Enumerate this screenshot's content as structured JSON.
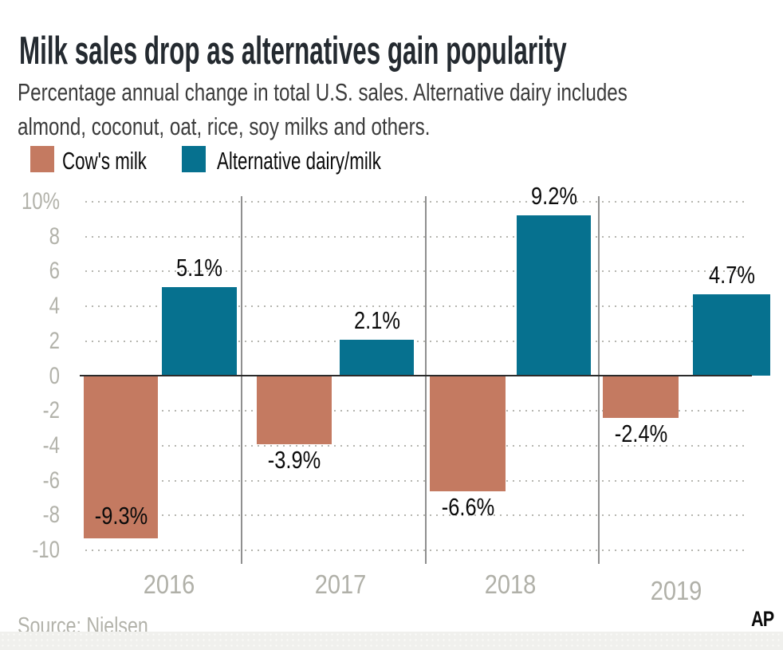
{
  "title": "Milk sales drop as alternatives gain popularity",
  "subtitle_line1": "Percentage annual change in total U.S. sales. Alternative dairy includes",
  "subtitle_line2": "almond, coconut, oat, rice, soy milks and others.",
  "legend": [
    {
      "label": "Cow's milk",
      "color": "#c47a61"
    },
    {
      "label": "Alternative dairy/milk",
      "color": "#06718f"
    }
  ],
  "chart_data": {
    "type": "bar",
    "categories": [
      "2016",
      "2017",
      "2018",
      "2019"
    ],
    "series": [
      {
        "name": "Cow's milk",
        "color": "#c47a61",
        "values": [
          -9.3,
          -3.9,
          -6.6,
          -2.4
        ],
        "labels": [
          "-9.3%",
          "-3.9%",
          "-6.6%",
          "-2.4%"
        ]
      },
      {
        "name": "Alternative dairy/milk",
        "color": "#06718f",
        "values": [
          5.1,
          2.1,
          9.2,
          4.7
        ],
        "labels": [
          "5.1%",
          "2.1%",
          "9.2%",
          "4.7%"
        ]
      }
    ],
    "ylim": [
      -10,
      10
    ],
    "yticks": [
      10,
      8,
      6,
      4,
      2,
      0,
      -2,
      -4,
      -6,
      -8,
      -10
    ],
    "ytick_labels": [
      "10%",
      "8",
      "6",
      "4",
      "2",
      "0",
      "-2",
      "-4",
      "-6",
      "-8",
      "-10"
    ],
    "grid": "dotted horizontal gridlines, solid zero baseline, vertical group separators",
    "legend_position": "top-left"
  },
  "footer": {
    "source": "Source: Nielsen",
    "ap_logo": "AP"
  }
}
